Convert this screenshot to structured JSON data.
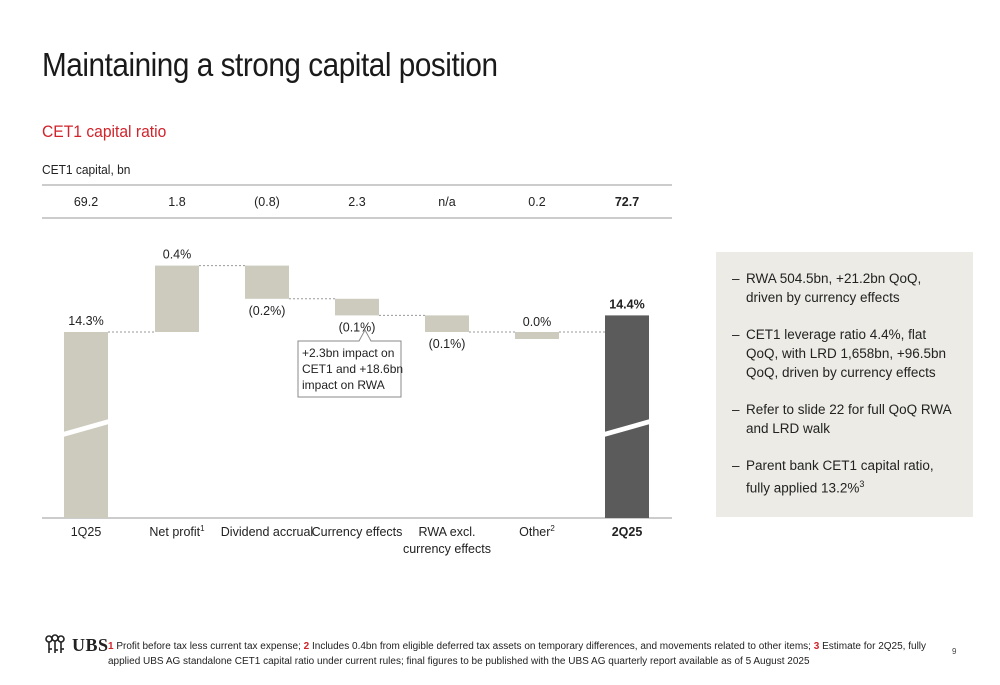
{
  "page": {
    "title": "Maintaining a strong capital position",
    "subtitle": "CET1 capital ratio",
    "caption": "CET1 capital, bn",
    "page_number": "9"
  },
  "sidebar": {
    "bullets": [
      {
        "dash": "–",
        "text": "RWA 504.5bn, +21.2bn QoQ, driven by currency effects",
        "sup": ""
      },
      {
        "dash": "–",
        "text": "CET1 leverage ratio 4.4%, flat QoQ, with LRD 1,658bn, +96.5bn QoQ, driven by currency effects",
        "sup": ""
      },
      {
        "dash": "–",
        "text": "Refer to slide 22 for full QoQ RWA and LRD walk",
        "sup": ""
      },
      {
        "dash": "–",
        "text": "Parent bank CET1 capital ratio, fully applied 13.2%",
        "sup": "3"
      }
    ]
  },
  "footer": {
    "logo_text": "UBS",
    "notes": [
      {
        "num": "1",
        "text": "Profit before tax less current tax expense;"
      },
      {
        "num": "2",
        "text": "Includes 0.4bn from eligible deferred tax assets on temporary differences, and movements related to other items;"
      },
      {
        "num": "3",
        "text": "Estimate for 2Q25, fully applied UBS AG standalone CET1 capital ratio under current rules; final figures to be published with the UBS AG quarterly report available as of 5 August 2025"
      }
    ]
  },
  "chart_data": {
    "type": "bar",
    "subtype": "waterfall",
    "title": "CET1 capital ratio",
    "row_header_label": "CET1 capital, bn",
    "categories": [
      {
        "label": "1Q25",
        "sup": "",
        "line2": "",
        "bold": false
      },
      {
        "label": "Net profit",
        "sup": "1",
        "line2": "",
        "bold": false
      },
      {
        "label": "Dividend accrual",
        "sup": "",
        "line2": "",
        "bold": false
      },
      {
        "label": "Currency effects",
        "sup": "",
        "line2": "",
        "bold": false
      },
      {
        "label": "RWA excl.",
        "sup": "",
        "line2": "currency effects",
        "bold": false
      },
      {
        "label": "Other",
        "sup": "2",
        "line2": "",
        "bold": false
      },
      {
        "label": "2Q25",
        "sup": "",
        "line2": "",
        "bold": true
      }
    ],
    "capital_bn_labels": [
      "69.2",
      "1.8",
      "(0.8)",
      "2.3",
      "n/a",
      "0.2",
      "72.7"
    ],
    "ratio_labels": [
      "14.3%",
      "0.4%",
      "(0.2%)",
      "(0.1%)",
      "(0.1%)",
      "0.0%",
      "14.4%"
    ],
    "ratio_values": [
      14.3,
      0.4,
      -0.2,
      -0.1,
      -0.1,
      0.0,
      14.4
    ],
    "bar_kinds": [
      "total",
      "delta",
      "delta",
      "delta",
      "delta",
      "delta",
      "total"
    ],
    "axis_broken": true,
    "colors": {
      "total_start": "#cdcbbd",
      "delta": "#cdcbbd",
      "total_end": "#5a5b5a",
      "grid": "#9a9a9a",
      "connector": "#9a9a9a"
    },
    "annotation": {
      "lines": [
        "+2.3bn impact on",
        "CET1 and +18.6bn",
        "impact on RWA"
      ]
    }
  }
}
